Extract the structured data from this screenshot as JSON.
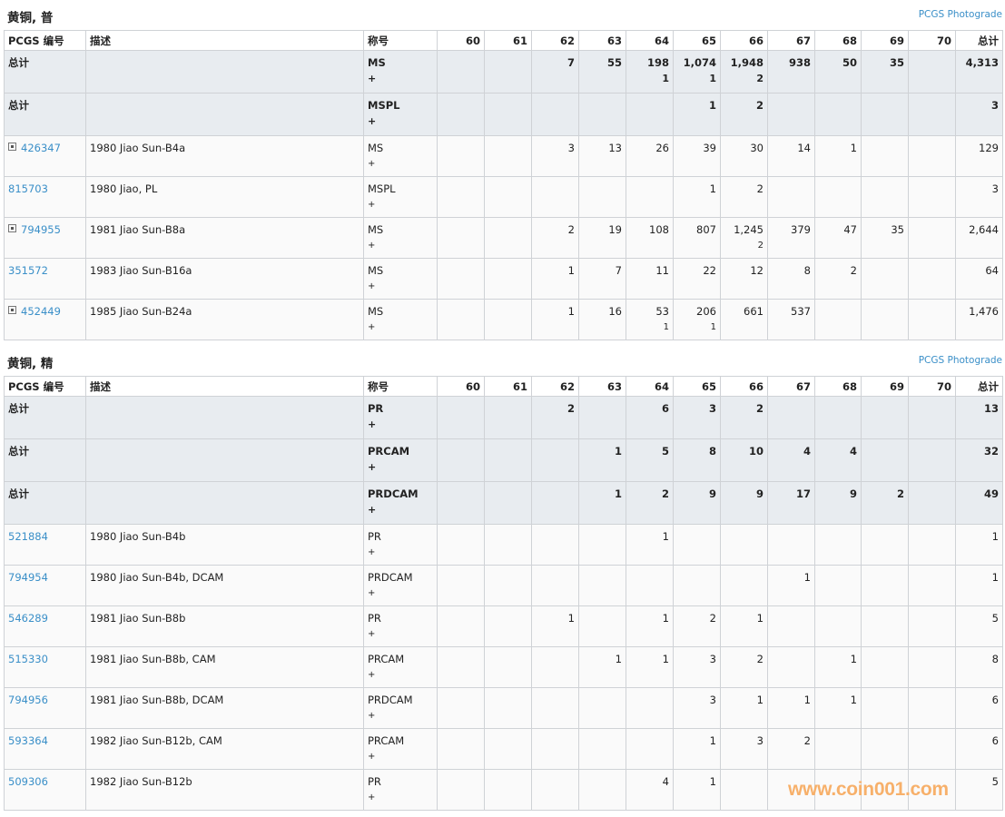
{
  "grades": [
    "60",
    "61",
    "62",
    "63",
    "64",
    "65",
    "66",
    "67",
    "68",
    "69",
    "70"
  ],
  "columns": {
    "pcgs_no": "PCGS 编号",
    "desc": "描述",
    "designation": "称号",
    "total": "总计"
  },
  "watermark": "www.coin001.com",
  "colors": {
    "link": "#3a8fc8",
    "total_row_bg": "#e8ecf0",
    "watermark": "#f7b06a"
  },
  "sections": [
    {
      "title": "黄铜, 普",
      "photograde_link": "PCGS Photograde",
      "totals": [
        {
          "label": "总计",
          "designation": "MS",
          "plus": "+",
          "cells": {
            "62": [
              "7"
            ],
            "63": [
              "55"
            ],
            "64": [
              "198",
              "1"
            ],
            "65": [
              "1,074",
              "1"
            ],
            "66": [
              "1,948",
              "2"
            ],
            "67": [
              "938"
            ],
            "68": [
              "50"
            ],
            "69": [
              "35"
            ]
          },
          "total": "4,313"
        },
        {
          "label": "总计",
          "designation": "MSPL",
          "plus": "+",
          "cells": {
            "65": [
              "1"
            ],
            "66": [
              "2"
            ]
          },
          "total": "3"
        }
      ],
      "rows": [
        {
          "pcgs": "426347",
          "expandable": true,
          "desc": "1980 Jiao Sun-B4a",
          "designation": "MS",
          "plus": "+",
          "cells": {
            "62": [
              "3"
            ],
            "63": [
              "13"
            ],
            "64": [
              "26"
            ],
            "65": [
              "39"
            ],
            "66": [
              "30"
            ],
            "67": [
              "14"
            ],
            "68": [
              "1"
            ]
          },
          "total": "129"
        },
        {
          "pcgs": "815703",
          "expandable": false,
          "desc": "1980 Jiao, PL",
          "designation": "MSPL",
          "plus": "+",
          "cells": {
            "65": [
              "1"
            ],
            "66": [
              "2"
            ]
          },
          "total": "3"
        },
        {
          "pcgs": "794955",
          "expandable": true,
          "desc": "1981 Jiao Sun-B8a",
          "designation": "MS",
          "plus": "+",
          "cells": {
            "62": [
              "2"
            ],
            "63": [
              "19"
            ],
            "64": [
              "108"
            ],
            "65": [
              "807"
            ],
            "66": [
              "1,245",
              "2"
            ],
            "67": [
              "379"
            ],
            "68": [
              "47"
            ],
            "69": [
              "35"
            ]
          },
          "total": "2,644"
        },
        {
          "pcgs": "351572",
          "expandable": false,
          "desc": "1983 Jiao Sun-B16a",
          "designation": "MS",
          "plus": "+",
          "cells": {
            "62": [
              "1"
            ],
            "63": [
              "7"
            ],
            "64": [
              "11"
            ],
            "65": [
              "22"
            ],
            "66": [
              "12"
            ],
            "67": [
              "8"
            ],
            "68": [
              "2"
            ]
          },
          "total": "64"
        },
        {
          "pcgs": "452449",
          "expandable": true,
          "desc": "1985 Jiao Sun-B24a",
          "designation": "MS",
          "plus": "+",
          "cells": {
            "62": [
              "1"
            ],
            "63": [
              "16"
            ],
            "64": [
              "53",
              "1"
            ],
            "65": [
              "206",
              "1"
            ],
            "66": [
              "661"
            ],
            "67": [
              "537"
            ]
          },
          "total": "1,476"
        }
      ]
    },
    {
      "title": "黄铜, 精",
      "photograde_link": "PCGS Photograde",
      "totals": [
        {
          "label": "总计",
          "designation": "PR",
          "plus": "+",
          "cells": {
            "62": [
              "2"
            ],
            "64": [
              "6"
            ],
            "65": [
              "3"
            ],
            "66": [
              "2"
            ]
          },
          "total": "13"
        },
        {
          "label": "总计",
          "designation": "PRCAM",
          "plus": "+",
          "cells": {
            "63": [
              "1"
            ],
            "64": [
              "5"
            ],
            "65": [
              "8"
            ],
            "66": [
              "10"
            ],
            "67": [
              "4"
            ],
            "68": [
              "4"
            ]
          },
          "total": "32"
        },
        {
          "label": "总计",
          "designation": "PRDCAM",
          "plus": "+",
          "cells": {
            "63": [
              "1"
            ],
            "64": [
              "2"
            ],
            "65": [
              "9"
            ],
            "66": [
              "9"
            ],
            "67": [
              "17"
            ],
            "68": [
              "9"
            ],
            "69": [
              "2"
            ]
          },
          "total": "49"
        }
      ],
      "rows": [
        {
          "pcgs": "521884",
          "expandable": false,
          "desc": "1980 Jiao Sun-B4b",
          "designation": "PR",
          "plus": "+",
          "cells": {
            "64": [
              "1"
            ]
          },
          "total": "1"
        },
        {
          "pcgs": "794954",
          "expandable": false,
          "desc": "1980 Jiao Sun-B4b, DCAM",
          "designation": "PRDCAM",
          "plus": "+",
          "cells": {
            "67": [
              "1"
            ]
          },
          "total": "1"
        },
        {
          "pcgs": "546289",
          "expandable": false,
          "desc": "1981 Jiao Sun-B8b",
          "designation": "PR",
          "plus": "+",
          "cells": {
            "62": [
              "1"
            ],
            "64": [
              "1"
            ],
            "65": [
              "2"
            ],
            "66": [
              "1"
            ]
          },
          "total": "5"
        },
        {
          "pcgs": "515330",
          "expandable": false,
          "desc": "1981 Jiao Sun-B8b, CAM",
          "designation": "PRCAM",
          "plus": "+",
          "cells": {
            "63": [
              "1"
            ],
            "64": [
              "1"
            ],
            "65": [
              "3"
            ],
            "66": [
              "2"
            ],
            "68": [
              "1"
            ]
          },
          "total": "8"
        },
        {
          "pcgs": "794956",
          "expandable": false,
          "desc": "1981 Jiao Sun-B8b, DCAM",
          "designation": "PRDCAM",
          "plus": "+",
          "cells": {
            "65": [
              "3"
            ],
            "66": [
              "1"
            ],
            "67": [
              "1"
            ],
            "68": [
              "1"
            ]
          },
          "total": "6"
        },
        {
          "pcgs": "593364",
          "expandable": false,
          "desc": "1982 Jiao Sun-B12b, CAM",
          "designation": "PRCAM",
          "plus": "+",
          "cells": {
            "65": [
              "1"
            ],
            "66": [
              "3"
            ],
            "67": [
              "2"
            ]
          },
          "total": "6"
        },
        {
          "pcgs": "509306",
          "expandable": false,
          "desc": "1982 Jiao Sun-B12b",
          "designation": "PR",
          "plus": "+",
          "cells": {
            "64": [
              "4"
            ],
            "65": [
              "1"
            ]
          },
          "total": "5"
        }
      ]
    }
  ]
}
